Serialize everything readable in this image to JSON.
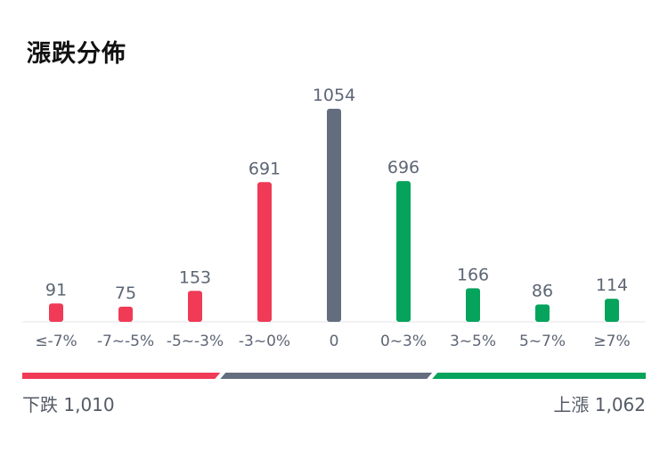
{
  "title": "漲跌分佈",
  "chart_data": {
    "type": "bar",
    "categories": [
      "≤-7%",
      "-7~-5%",
      "-5~-3%",
      "-3~0%",
      "0",
      "0~3%",
      "3~5%",
      "5~7%",
      "≥7%"
    ],
    "values": [
      91,
      75,
      153,
      691,
      1054,
      696,
      166,
      86,
      114
    ],
    "ylim": [
      0,
      1054
    ],
    "grid": false,
    "colors": [
      "#f03a56",
      "#f03a56",
      "#f03a56",
      "#f03a56",
      "#646d7e",
      "#05a35c",
      "#05a35c",
      "#05a35c",
      "#05a35c"
    ]
  },
  "summary": {
    "down_label": "下跌 1,010",
    "up_label": "上漲 1,062",
    "down_count": 1010,
    "flat_count": 1054,
    "up_count": 1062,
    "down_color": "#f03a56",
    "flat_color": "#646d7e",
    "up_color": "#05a35c"
  }
}
